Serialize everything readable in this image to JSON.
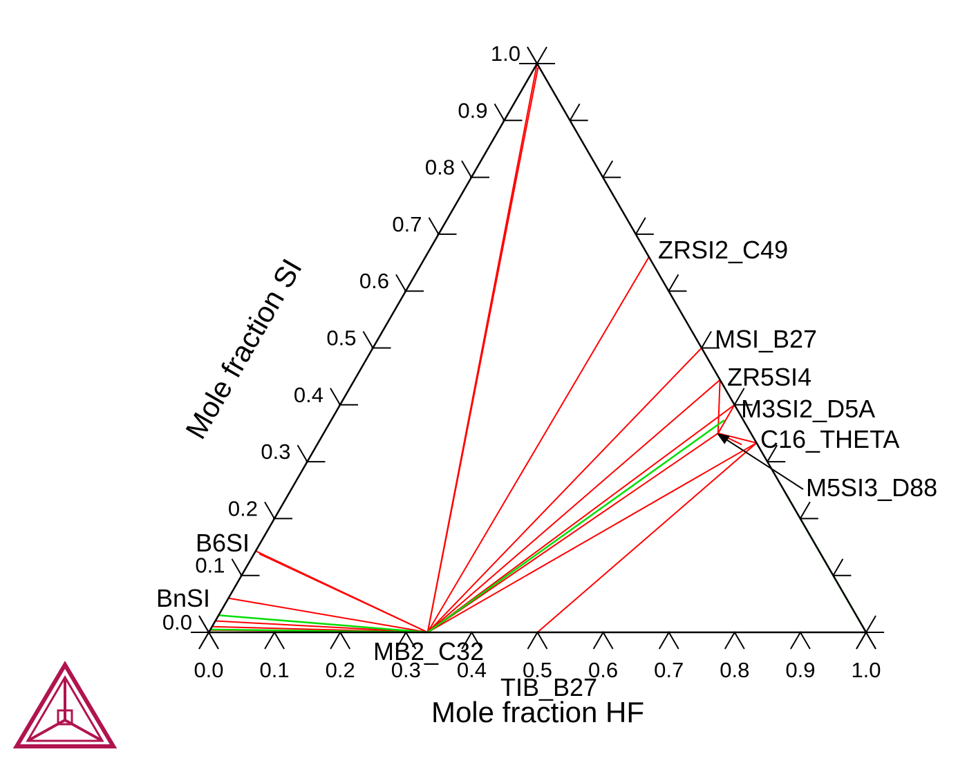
{
  "chart_data": {
    "type": "ternary-phase-diagram",
    "axes": {
      "bottom": {
        "label": "Mole fraction HF",
        "ticks": [
          "0.0",
          "0.1",
          "0.2",
          "0.3",
          "0.4",
          "0.5",
          "0.6",
          "0.7",
          "0.8",
          "0.9",
          "1.0"
        ]
      },
      "left": {
        "label": "Mole fraction SI",
        "ticks": [
          "0.0",
          "0.1",
          "0.2",
          "0.3",
          "0.4",
          "0.5",
          "0.6",
          "0.7",
          "0.8",
          "0.9",
          "1.0"
        ]
      },
      "range": [
        0,
        1
      ]
    },
    "phases": [
      {
        "name": "ZRSI2_C49",
        "hf": 0.34,
        "si": 0.66
      },
      {
        "name": "MSI_B27",
        "hf": 0.5,
        "si": 0.5
      },
      {
        "name": "ZR5SI4",
        "hf": 0.556,
        "si": 0.444
      },
      {
        "name": "M3SI2_D5A",
        "hf": 0.6,
        "si": 0.4
      },
      {
        "name": "C16_THETA",
        "hf": 0.667,
        "si": 0.333
      },
      {
        "name": "M5SI3_D88",
        "hf": 0.6,
        "si": 0.35
      },
      {
        "name": "B6SI",
        "hf": 0.0,
        "si": 0.143
      },
      {
        "name": "BnSI",
        "hf": 0.0,
        "si": 0.05
      },
      {
        "name": "MB2_C32",
        "hf": 0.333,
        "si": 0.0
      },
      {
        "name": "TIB_B27",
        "hf": 0.5,
        "si": 0.0
      }
    ],
    "tie_lines_red": [
      [
        [
          0.333,
          0.0
        ],
        [
          0.0,
          1.0
        ]
      ],
      [
        [
          0.333,
          0.0
        ],
        [
          0.005,
          0.993
        ]
      ],
      [
        [
          0.333,
          0.0
        ],
        [
          0.34,
          0.66
        ]
      ],
      [
        [
          0.333,
          0.0
        ],
        [
          0.5,
          0.5
        ]
      ],
      [
        [
          0.333,
          0.0
        ],
        [
          0.556,
          0.444
        ]
      ],
      [
        [
          0.333,
          0.0
        ],
        [
          0.6,
          0.4
        ]
      ],
      [
        [
          0.333,
          0.0
        ],
        [
          0.6,
          0.35
        ]
      ],
      [
        [
          0.333,
          0.0
        ],
        [
          0.667,
          0.333
        ]
      ],
      [
        [
          0.333,
          0.0
        ],
        [
          0.0,
          0.143
        ]
      ],
      [
        [
          0.333,
          0.0
        ],
        [
          0.008,
          0.138
        ]
      ],
      [
        [
          0.333,
          0.0
        ],
        [
          0.0,
          0.06
        ]
      ],
      [
        [
          0.333,
          0.0
        ],
        [
          0.0,
          0.02
        ]
      ],
      [
        [
          0.333,
          0.0
        ],
        [
          0.0,
          0.01
        ]
      ],
      [
        [
          0.333,
          0.0
        ],
        [
          0.0,
          0.004
        ]
      ],
      [
        [
          0.5,
          0.0
        ],
        [
          0.667,
          0.333
        ]
      ],
      [
        [
          0.6,
          0.35
        ],
        [
          0.556,
          0.444
        ]
      ],
      [
        [
          0.6,
          0.35
        ],
        [
          0.667,
          0.333
        ]
      ],
      [
        [
          0.6,
          0.35
        ],
        [
          0.6,
          0.4
        ]
      ],
      [
        [
          0.6,
          0.35
        ],
        [
          0.646,
          0.33
        ]
      ],
      [
        [
          1.0,
          0.0
        ],
        [
          0.75,
          0.25
        ]
      ],
      [
        [
          1.0,
          0.0
        ],
        [
          0.745,
          0.255
        ]
      ]
    ],
    "tie_lines_green": [
      [
        [
          0.333,
          0.0
        ],
        [
          0.0,
          0.03
        ]
      ],
      [
        [
          0.333,
          0.0
        ],
        [
          0.0,
          0.005
        ]
      ],
      [
        [
          0.333,
          0.0
        ],
        [
          0.598,
          0.373
        ]
      ],
      [
        [
          1.0,
          0.0
        ],
        [
          0.752,
          0.248
        ]
      ]
    ],
    "annotation_arrow": {
      "label": "M5SI3_D88",
      "from": [
        0.74,
        0.26
      ],
      "to": [
        0.598,
        0.35
      ]
    },
    "colors": {
      "tie_line": "#ff0000",
      "tie_line_alt": "#00dd00",
      "frame": "#000000",
      "logo": "#b0144f"
    }
  }
}
